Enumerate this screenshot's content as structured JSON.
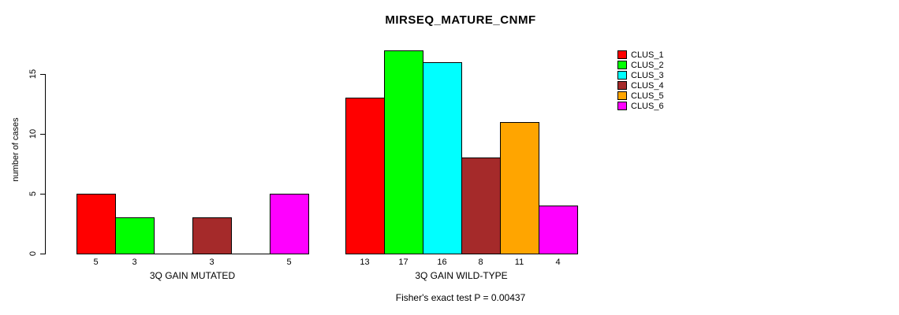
{
  "title": "MIRSEQ_MATURE_CNMF",
  "footer": "Fisher's exact test P = 0.00437",
  "y_axis": {
    "label": "number of cases",
    "ticks": [
      0,
      5,
      10,
      15
    ]
  },
  "legend": {
    "items": [
      {
        "label": "CLUS_1",
        "color": "#FF0000"
      },
      {
        "label": "CLUS_2",
        "color": "#00FF00"
      },
      {
        "label": "CLUS_3",
        "color": "#00FFFF"
      },
      {
        "label": "CLUS_4",
        "color": "#A52A2A"
      },
      {
        "label": "CLUS_5",
        "color": "#FFA500"
      },
      {
        "label": "CLUS_6",
        "color": "#FF00FF"
      }
    ]
  },
  "chart_data": {
    "type": "bar",
    "title": "MIRSEQ_MATURE_CNMF",
    "xlabel": "",
    "ylabel": "number of cases",
    "ylim": [
      0,
      17
    ],
    "yticks": [
      0,
      5,
      10,
      15
    ],
    "grid": false,
    "legend_position": "top-right",
    "bar_value_labels": true,
    "annotation": "Fisher's exact test P = 0.00437",
    "categories": [
      "3Q GAIN MUTATED",
      "3Q GAIN WILD-TYPE"
    ],
    "series": [
      {
        "name": "CLUS_1",
        "color": "#FF0000",
        "values": [
          5,
          13
        ]
      },
      {
        "name": "CLUS_2",
        "color": "#00FF00",
        "values": [
          3,
          17
        ]
      },
      {
        "name": "CLUS_3",
        "color": "#00FFFF",
        "values": [
          0,
          16
        ]
      },
      {
        "name": "CLUS_4",
        "color": "#A52A2A",
        "values": [
          3,
          8
        ]
      },
      {
        "name": "CLUS_5",
        "color": "#FFA500",
        "values": [
          0,
          11
        ]
      },
      {
        "name": "CLUS_6",
        "color": "#FF00FF",
        "values": [
          5,
          4
        ]
      }
    ]
  }
}
